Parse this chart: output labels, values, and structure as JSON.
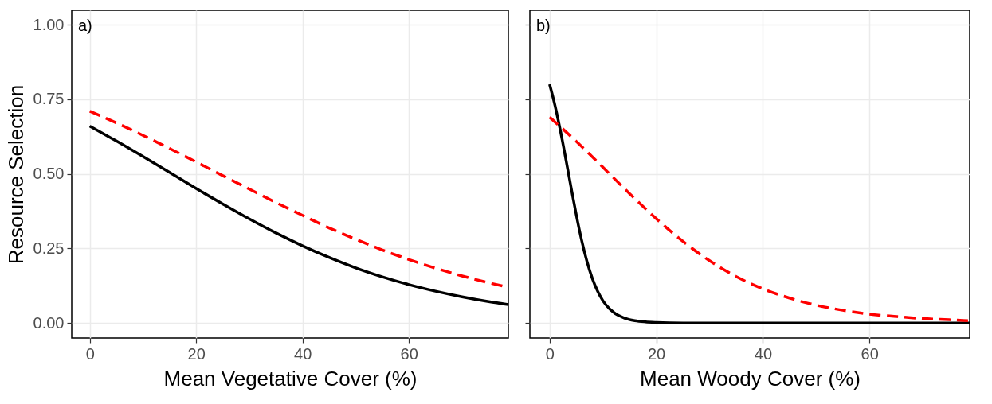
{
  "chart_data": [
    {
      "type": "line",
      "xlabel": "Mean Vegetative Cover (%)",
      "ylabel": "Resource Selection",
      "annotations": [
        "a)"
      ],
      "xlim": [
        -3.4,
        78.7
      ],
      "ylim": [
        -0.05,
        1.048
      ],
      "xticks": [
        0,
        20,
        40,
        60
      ],
      "yticks": [
        {
          "value": 0,
          "label": "0.00"
        },
        {
          "value": 0.25,
          "label": "0.25"
        },
        {
          "value": 0.5,
          "label": "0.50"
        },
        {
          "value": 0.75,
          "label": "0.75"
        },
        {
          "value": 1,
          "label": "1.00"
        }
      ],
      "grid": true,
      "x": [
        0,
        5,
        10,
        15,
        20,
        25,
        30,
        35,
        40,
        45,
        50,
        55,
        60,
        65,
        70,
        75,
        78.7
      ],
      "series": [
        {
          "color": "#000000",
          "line_style": "solid",
          "values": [
            0.66,
            0.61,
            0.558,
            0.505,
            0.451,
            0.399,
            0.349,
            0.302,
            0.259,
            0.22,
            0.185,
            0.155,
            0.129,
            0.107,
            0.088,
            0.072,
            0.062
          ]
        },
        {
          "color": "#ff0000",
          "line_style": "dashed",
          "values": [
            0.71,
            0.671,
            0.629,
            0.585,
            0.54,
            0.494,
            0.449,
            0.404,
            0.361,
            0.319,
            0.281,
            0.245,
            0.213,
            0.184,
            0.158,
            0.135,
            0.12
          ]
        }
      ]
    },
    {
      "type": "line",
      "xlabel": "Mean Woody Cover (%)",
      "annotations": [
        "b)"
      ],
      "xlim": [
        -3.7,
        78.8
      ],
      "ylim": [
        -0.05,
        1.048
      ],
      "xticks": [
        0,
        20,
        40,
        60
      ],
      "yticks": [
        0,
        0.25,
        0.5,
        0.75,
        1
      ],
      "grid": true,
      "tick_labels": "x",
      "series": [
        {
          "color": "#000000",
          "line_style": "solid",
          "x": [
            0,
            1,
            2,
            3,
            4,
            5,
            6,
            7,
            8,
            9,
            10,
            12,
            14,
            16,
            18,
            20,
            25,
            30,
            40,
            50,
            60,
            70,
            78.8
          ],
          "values": [
            0.8,
            0.73,
            0.647,
            0.554,
            0.457,
            0.363,
            0.278,
            0.207,
            0.15,
            0.107,
            0.075,
            0.036,
            0.017,
            0.008,
            0.004,
            0.002,
            0,
            0,
            0,
            0,
            0,
            0,
            0
          ]
        },
        {
          "color": "#ff0000",
          "line_style": "dashed",
          "x": [
            0,
            5,
            10,
            15,
            20,
            25,
            30,
            35,
            40,
            45,
            50,
            55,
            60,
            65,
            70,
            75,
            78.8
          ],
          "values": [
            0.69,
            0.609,
            0.522,
            0.434,
            0.35,
            0.274,
            0.209,
            0.156,
            0.115,
            0.084,
            0.06,
            0.043,
            0.03,
            0.022,
            0.015,
            0.011,
            0.008
          ]
        }
      ]
    }
  ]
}
